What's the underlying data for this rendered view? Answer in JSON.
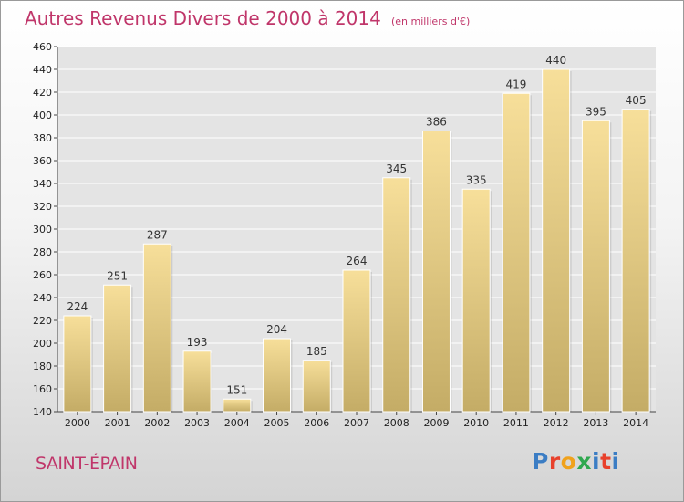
{
  "title": "Autres Revenus Divers de 2000 à 2014",
  "unit": "(en milliers d'€)",
  "location": "SAINT-ÉPAIN",
  "logo": {
    "text": "Proxiti",
    "colors": [
      "#3b7dc4",
      "#e8412c",
      "#f0a21c",
      "#2fa84f",
      "#3b7dc4",
      "#e8412c",
      "#3b7dc4"
    ]
  },
  "colors": {
    "accent": "#c0366a",
    "bar_light": "#f7df9a",
    "bar_dark": "#c4ac66",
    "grid": "#ffffff"
  },
  "chart_data": {
    "type": "bar",
    "title": "Autres Revenus Divers de 2000 à 2014",
    "xlabel": "",
    "ylabel": "",
    "categories": [
      "2000",
      "2001",
      "2002",
      "2003",
      "2004",
      "2005",
      "2006",
      "2007",
      "2008",
      "2009",
      "2010",
      "2011",
      "2012",
      "2013",
      "2014"
    ],
    "values": [
      224,
      251,
      287,
      193,
      151,
      204,
      185,
      264,
      345,
      386,
      335,
      419,
      440,
      395,
      405
    ],
    "ylim": [
      140,
      460
    ],
    "yticks": [
      140,
      160,
      180,
      200,
      220,
      240,
      260,
      280,
      300,
      320,
      340,
      360,
      380,
      400,
      420,
      440,
      460
    ],
    "grid": true,
    "data_labels": true
  }
}
